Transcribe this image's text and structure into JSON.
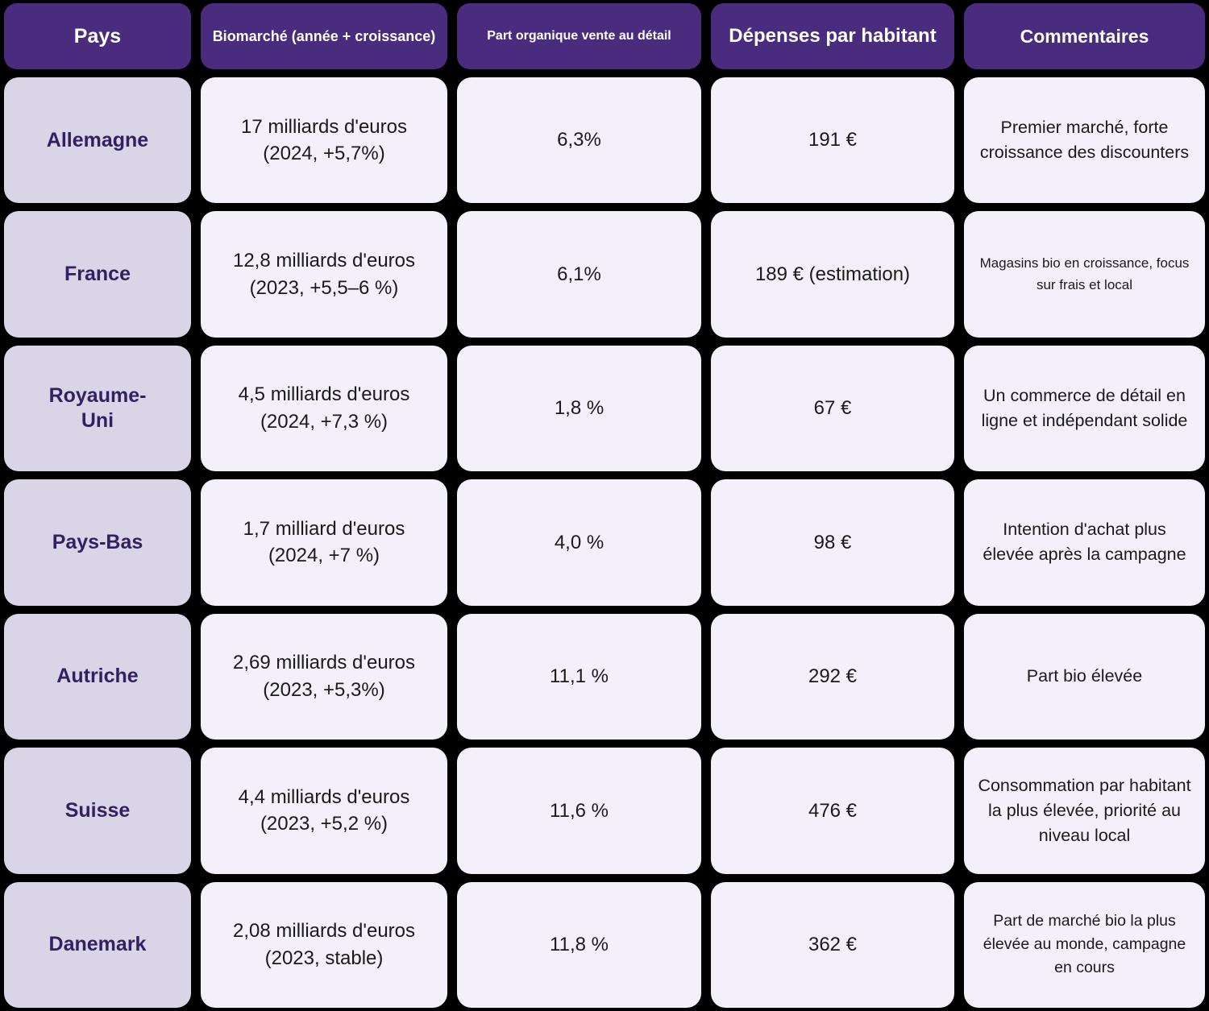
{
  "colors": {
    "page_background": "#000000",
    "header_background": "#4A2C7E",
    "header_text": "#FFFFFF",
    "country_cell_background": "#D9D5E6",
    "country_text": "#332063",
    "data_cell_background": "#F3F0FA",
    "data_text": "#1A1A1A"
  },
  "table": {
    "headers": {
      "country": "Pays",
      "market": "Biomarché (année + croissance)",
      "organic_share": "Part organique vente au détail",
      "per_capita_spend": "Dépenses par habitant",
      "comments": "Commentaires"
    },
    "rows": [
      {
        "country": "Allemagne",
        "market_value": "17 milliards d'euros",
        "market_detail": "(2024, +5,7%)",
        "organic_share": "6,3%",
        "per_capita_spend": "191 €",
        "comment": "Premier marché, forte croissance des discounters"
      },
      {
        "country": "France",
        "market_value": "12,8 milliards d'euros",
        "market_detail": "(2023, +5,5–6 %)",
        "organic_share": "6,1%",
        "per_capita_spend": "189 € (estimation)",
        "comment": "Magasins bio en croissance, focus sur frais et local"
      },
      {
        "country": "Royaume-\nUni",
        "market_value": "4,5 milliards d'euros",
        "market_detail": "(2024, +7,3 %)",
        "organic_share": "1,8 %",
        "per_capita_spend": "67 €",
        "comment": "Un commerce de détail en ligne et indépendant solide"
      },
      {
        "country": "Pays-Bas",
        "market_value": "1,7 milliard d'euros",
        "market_detail": "(2024, +7 %)",
        "organic_share": "4,0 %",
        "per_capita_spend": "98 €",
        "comment": "Intention d'achat plus élevée après la campagne"
      },
      {
        "country": "Autriche",
        "market_value": "2,69 milliards d'euros",
        "market_detail": "(2023, +5,3%)",
        "organic_share": "11,1 %",
        "per_capita_spend": "292 €",
        "comment": "Part bio élevée"
      },
      {
        "country": "Suisse",
        "market_value": "4,4 milliards d'euros",
        "market_detail": "(2023, +5,2 %)",
        "organic_share": "11,6 %",
        "per_capita_spend": "476 €",
        "comment": "Consommation par habitant la plus élevée, priorité au niveau local"
      },
      {
        "country": "Danemark",
        "market_value": "2,08 milliards d'euros",
        "market_detail": "(2023, stable)",
        "organic_share": "11,8 %",
        "per_capita_spend": "362 €",
        "comment": "Part de marché bio la plus élevée au monde, campagne en cours"
      }
    ]
  }
}
